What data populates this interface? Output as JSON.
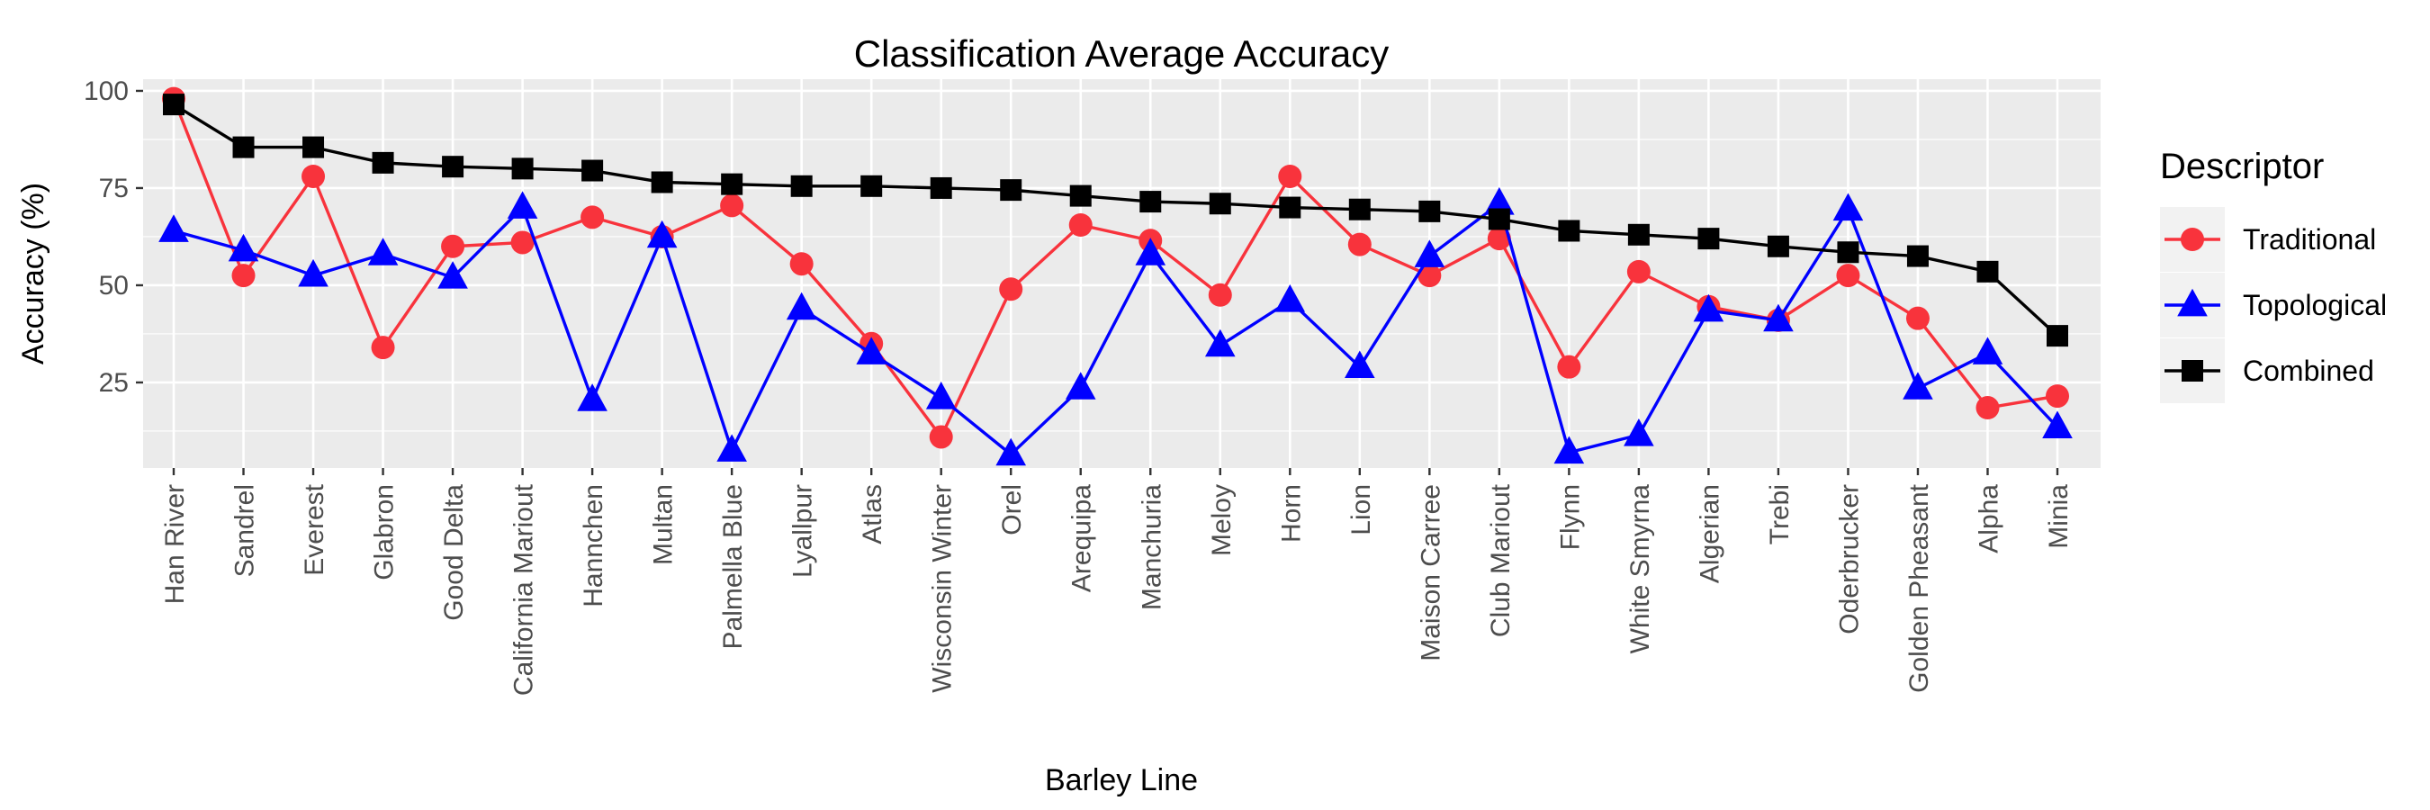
{
  "chart_data": {
    "type": "line",
    "title": "Classification Average Accuracy",
    "xlabel": "Barley Line",
    "ylabel": "Accuracy (%)",
    "ylim": [
      3,
      103
    ],
    "yticks": [
      25,
      50,
      75,
      100
    ],
    "grid": true,
    "legend": {
      "title": "Descriptor",
      "placement": "right"
    },
    "categories": [
      "Han River",
      "Sandrel",
      "Everest",
      "Glabron",
      "Good Delta",
      "California Mariout",
      "Hannchen",
      "Multan",
      "Palmella Blue",
      "Lyallpur",
      "Atlas",
      "Wisconsin Winter",
      "Orel",
      "Arequipa",
      "Manchuria",
      "Meloy",
      "Horn",
      "Lion",
      "Maison Carree",
      "Club Mariout",
      "Flynn",
      "White Smyrna",
      "Algerian",
      "Trebi",
      "Oderbrucker",
      "Golden Pheasant",
      "Alpha",
      "Minia"
    ],
    "series": [
      {
        "name": "Traditional",
        "color": "#f8333c",
        "marker": "circle",
        "values": [
          98,
          52.5,
          78,
          34,
          60,
          61,
          67.5,
          62.5,
          70.5,
          55.5,
          35,
          11,
          49,
          65.5,
          61.5,
          47.5,
          78,
          60.5,
          52.5,
          62,
          29,
          53.5,
          44.5,
          41,
          52.5,
          41.5,
          18.5,
          21.5
        ]
      },
      {
        "name": "Topological",
        "color": "#0000ff",
        "marker": "triangle",
        "values": [
          64,
          59,
          52.5,
          58,
          52,
          70,
          20.5,
          62.5,
          7.5,
          44,
          32.5,
          21,
          6.5,
          23.5,
          58,
          34.5,
          46,
          29,
          57.5,
          71,
          7,
          11.5,
          43.5,
          41,
          69.5,
          23.5,
          32.5,
          13.5
        ]
      },
      {
        "name": "Combined",
        "color": "#000000",
        "marker": "square",
        "values": [
          96.5,
          85.5,
          85.5,
          81.5,
          80.5,
          80,
          79.5,
          76.5,
          76,
          75.5,
          75.5,
          75,
          74.5,
          73,
          71.5,
          71,
          70,
          69.5,
          69,
          67,
          64,
          63,
          62,
          60,
          58.5,
          57.5,
          53.5,
          37
        ]
      }
    ]
  }
}
